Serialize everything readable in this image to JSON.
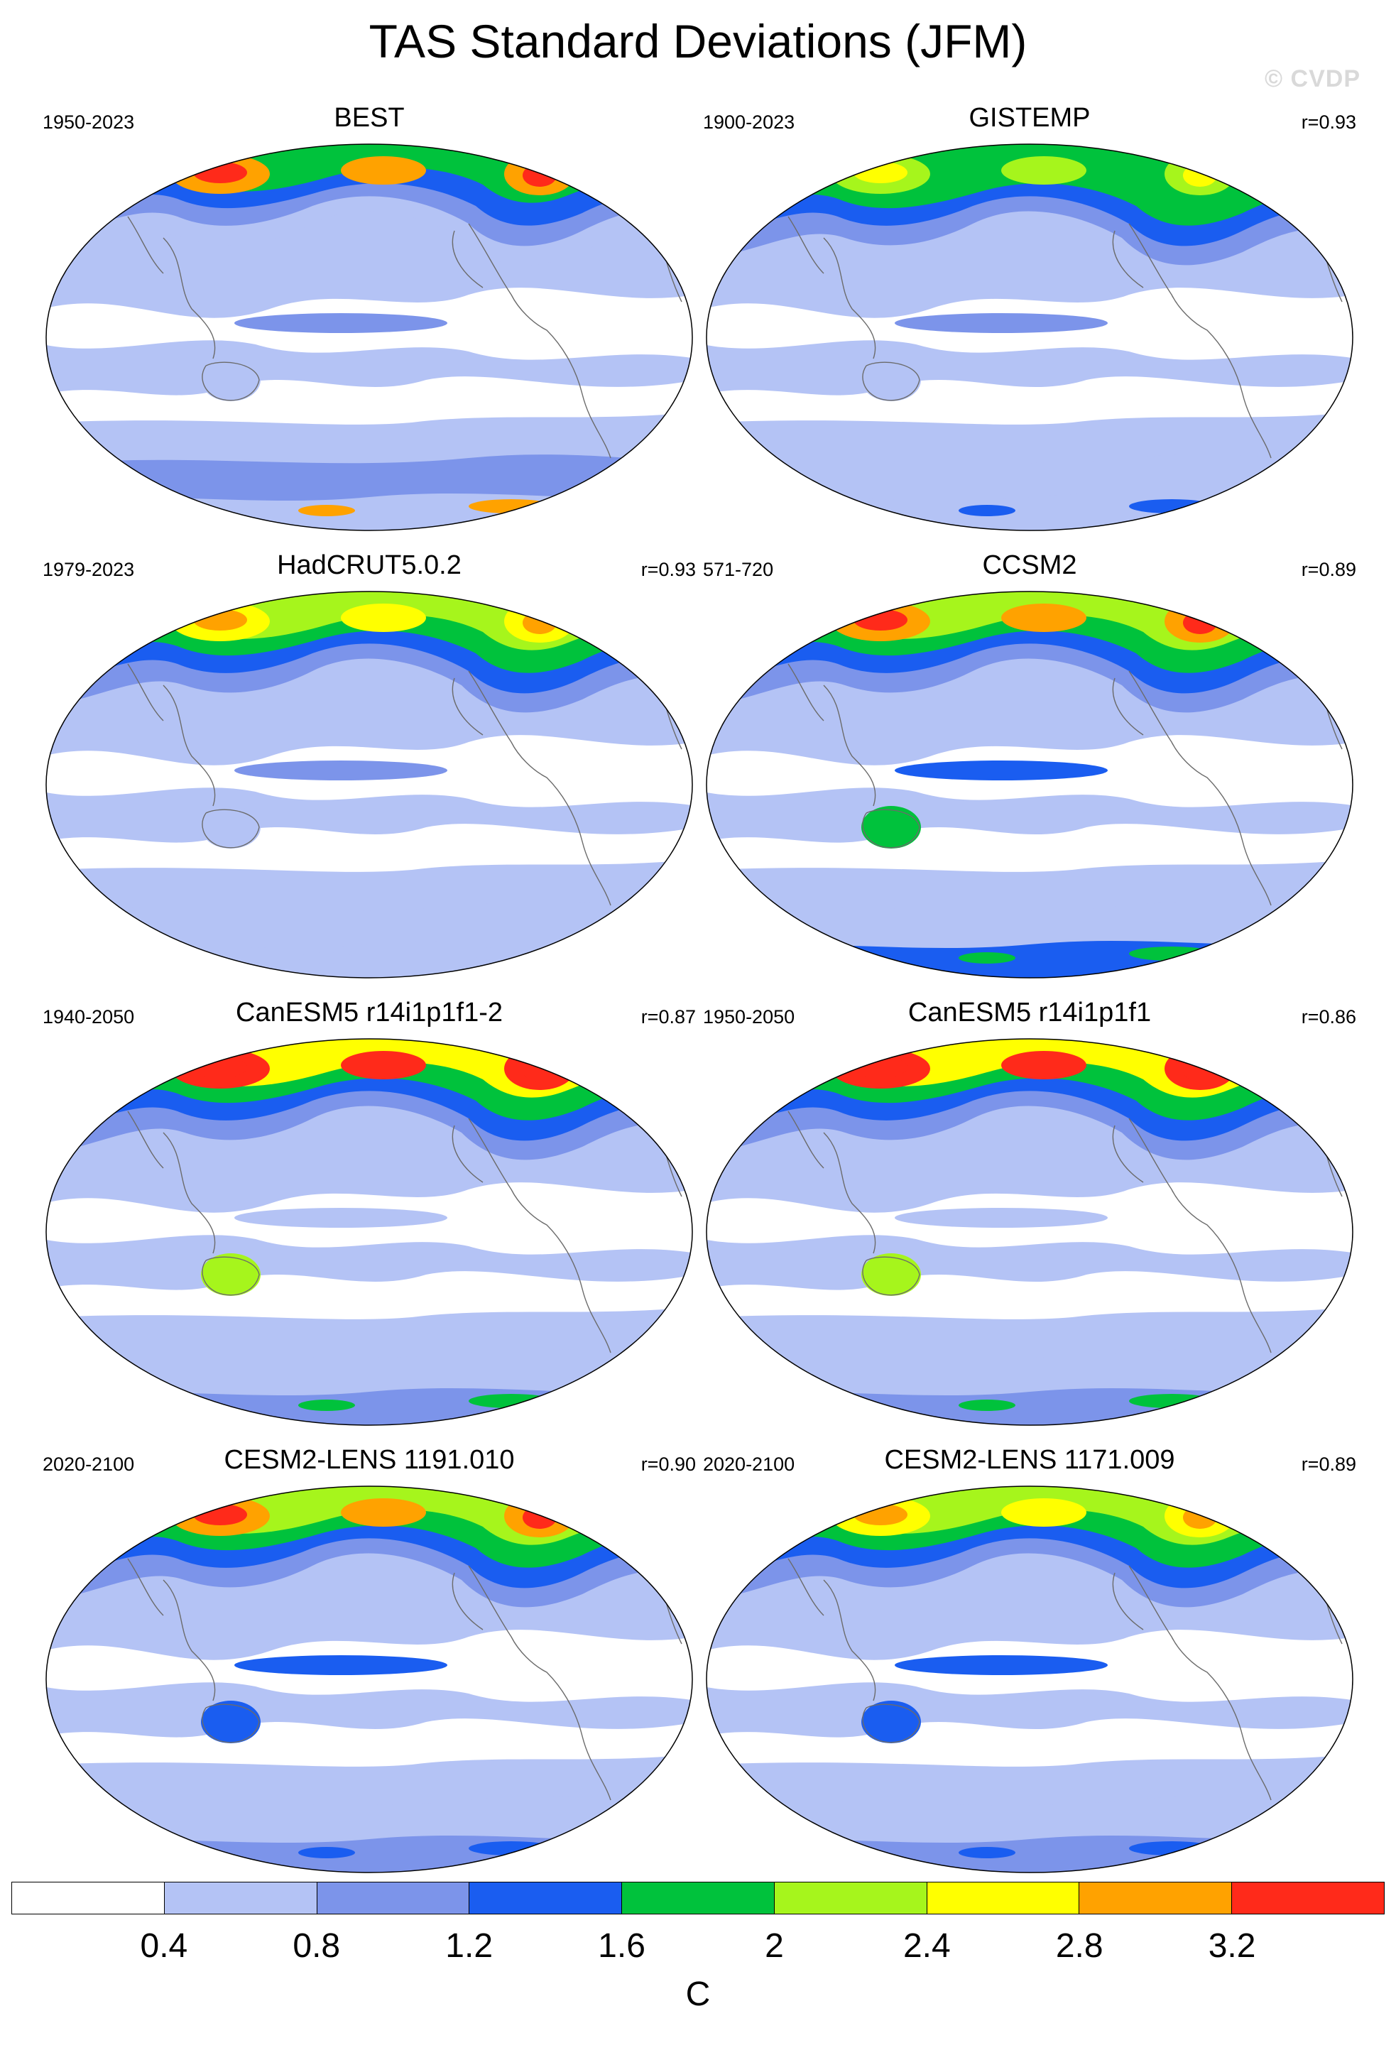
{
  "title": "TAS Standard Deviations (JFM)",
  "watermark": "© CVDP",
  "panels": [
    {
      "title": "BEST",
      "years": "1950-2023",
      "corr": "",
      "levels": {
        "arctic": 4,
        "arctic_peak": 8,
        "north_band": 2,
        "southern": 2,
        "antarctica": 1,
        "antarctic_hot": 7,
        "australia": 1,
        "pacific_band": 2
      }
    },
    {
      "title": "GISTEMP",
      "years": "1900-2023",
      "corr": "r=0.93",
      "levels": {
        "arctic": 4,
        "arctic_peak": 6,
        "north_band": 3,
        "southern": 1,
        "antarctica": 1,
        "antarctic_hot": 3,
        "australia": 1,
        "pacific_band": 2
      }
    },
    {
      "title": "HadCRUT5.0.2",
      "years": "1979-2023",
      "corr": "r=0.93",
      "levels": {
        "arctic": 5,
        "arctic_peak": 7,
        "north_band": 3,
        "southern": 1,
        "antarctica": 1,
        "antarctic_hot": 1,
        "australia": 1,
        "pacific_band": 2
      }
    },
    {
      "title": "CCSM2",
      "years": "571-720",
      "corr": "r=0.89",
      "levels": {
        "arctic": 5,
        "arctic_peak": 8,
        "north_band": 3,
        "southern": 1,
        "antarctica": 3,
        "antarctic_hot": 4,
        "australia": 4,
        "pacific_band": 3
      }
    },
    {
      "title": "CanESM5 r14i1p1f1-2",
      "years": "1940-2050",
      "corr": "r=0.87",
      "levels": {
        "arctic": 6,
        "arctic_peak": 9,
        "north_band": 3,
        "southern": 1,
        "antarctica": 2,
        "antarctic_hot": 4,
        "australia": 5,
        "pacific_band": 1
      }
    },
    {
      "title": "CanESM5 r14i1p1f1",
      "years": "1950-2050",
      "corr": "r=0.86",
      "levels": {
        "arctic": 6,
        "arctic_peak": 9,
        "north_band": 3,
        "southern": 1,
        "antarctica": 2,
        "antarctic_hot": 4,
        "australia": 5,
        "pacific_band": 1
      }
    },
    {
      "title": "CESM2-LENS 1191.010",
      "years": "2020-2100",
      "corr": "r=0.90",
      "levels": {
        "arctic": 5,
        "arctic_peak": 8,
        "north_band": 3,
        "southern": 1,
        "antarctica": 2,
        "antarctic_hot": 3,
        "australia": 3,
        "pacific_band": 3
      }
    },
    {
      "title": "CESM2-LENS 1171.009",
      "years": "2020-2100",
      "corr": "r=0.89",
      "levels": {
        "arctic": 5,
        "arctic_peak": 7,
        "north_band": 3,
        "southern": 1,
        "antarctica": 2,
        "antarctic_hot": 3,
        "australia": 3,
        "pacific_band": 3
      }
    }
  ],
  "colorbar": {
    "colors": [
      "#ffffff",
      "#b4c3f5",
      "#7c94ea",
      "#1a5df0",
      "#00c23c",
      "#a6f51c",
      "#ffff00",
      "#ffa200",
      "#ff2a1a"
    ],
    "labels": [
      "0.4",
      "0.8",
      "1.2",
      "1.6",
      "2",
      "2.4",
      "2.8",
      "3.2"
    ],
    "units": "C"
  }
}
